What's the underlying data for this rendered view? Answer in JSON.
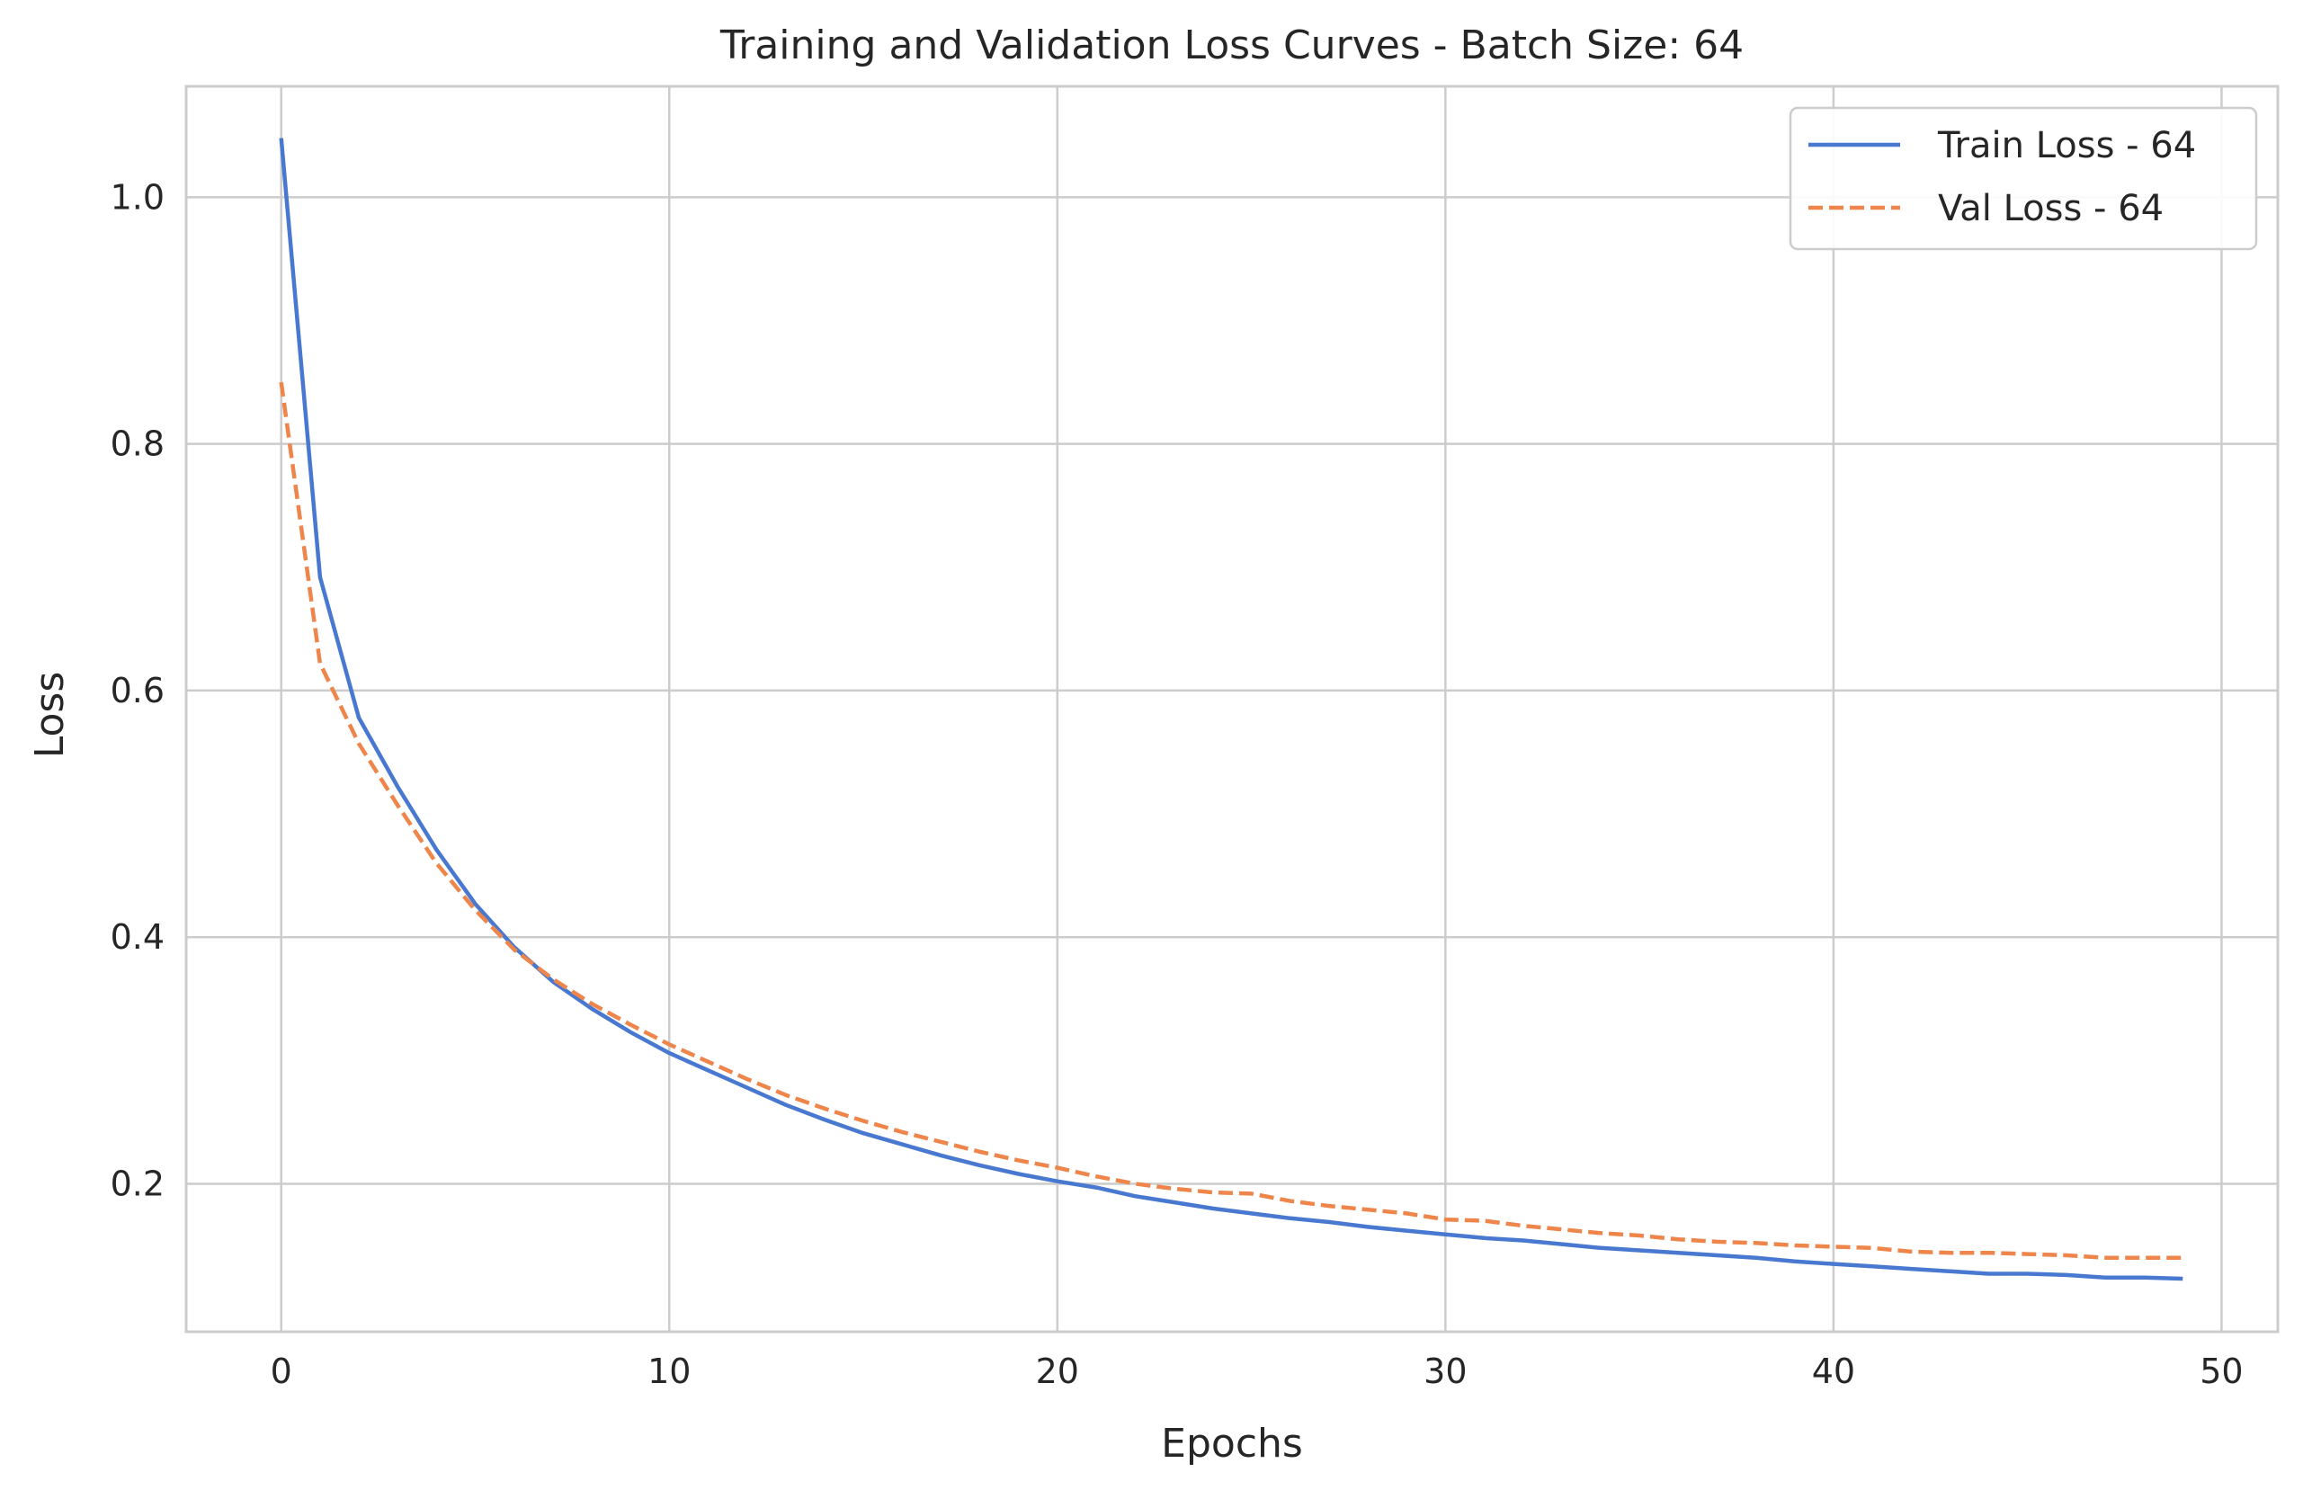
{
  "chart_data": {
    "type": "line",
    "title": "Training and Validation Loss Curves - Batch Size: 64",
    "xlabel": "Epochs",
    "ylabel": "Loss",
    "xlim": [
      -2.45,
      51.45
    ],
    "ylim": [
      0.08,
      1.09
    ],
    "xticks": [
      0,
      10,
      20,
      30,
      40,
      50
    ],
    "xtick_labels": [
      "0",
      "10",
      "20",
      "30",
      "40",
      "50"
    ],
    "yticks": [
      0.2,
      0.4,
      0.6,
      0.8,
      1.0
    ],
    "ytick_labels": [
      "0.2",
      "0.4",
      "0.6",
      "0.8",
      "1.0"
    ],
    "grid": true,
    "legend_position": "top-right",
    "x": [
      0,
      1,
      2,
      3,
      4,
      5,
      6,
      7,
      8,
      9,
      10,
      11,
      12,
      13,
      14,
      15,
      16,
      17,
      18,
      19,
      20,
      21,
      22,
      23,
      24,
      25,
      26,
      27,
      28,
      29,
      30,
      31,
      32,
      33,
      34,
      35,
      36,
      37,
      38,
      39,
      40,
      41,
      42,
      43,
      44,
      45,
      46,
      47,
      48,
      49
    ],
    "series": [
      {
        "name": "Train Loss - 64",
        "color": "#4878d0",
        "style": "solid",
        "values": [
          1.048,
          0.692,
          0.578,
          0.522,
          0.471,
          0.427,
          0.392,
          0.364,
          0.342,
          0.323,
          0.306,
          0.292,
          0.278,
          0.264,
          0.252,
          0.241,
          0.232,
          0.223,
          0.215,
          0.208,
          0.202,
          0.197,
          0.19,
          0.185,
          0.18,
          0.176,
          0.172,
          0.169,
          0.165,
          0.162,
          0.159,
          0.156,
          0.154,
          0.151,
          0.148,
          0.146,
          0.144,
          0.142,
          0.14,
          0.137,
          0.135,
          0.133,
          0.131,
          0.129,
          0.127,
          0.127,
          0.126,
          0.124,
          0.124,
          0.123
        ]
      },
      {
        "name": "Val Loss - 64",
        "color": "#ee854a",
        "style": "dashed",
        "values": [
          0.85,
          0.622,
          0.557,
          0.507,
          0.46,
          0.422,
          0.39,
          0.366,
          0.346,
          0.329,
          0.313,
          0.299,
          0.285,
          0.272,
          0.261,
          0.251,
          0.242,
          0.234,
          0.226,
          0.219,
          0.213,
          0.206,
          0.2,
          0.196,
          0.193,
          0.192,
          0.186,
          0.182,
          0.179,
          0.176,
          0.171,
          0.17,
          0.166,
          0.163,
          0.16,
          0.158,
          0.155,
          0.153,
          0.152,
          0.15,
          0.149,
          0.148,
          0.145,
          0.144,
          0.144,
          0.143,
          0.142,
          0.14,
          0.14,
          0.14
        ]
      }
    ]
  }
}
